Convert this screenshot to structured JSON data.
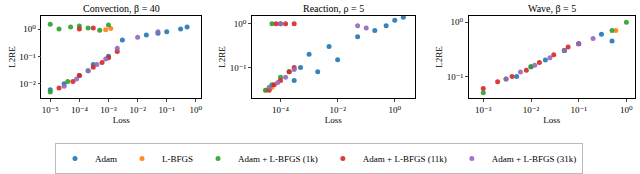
{
  "chart_data": [
    {
      "type": "scatter",
      "title": "Convection, β = 40",
      "x_label": "Loss",
      "y_label": "L2RE",
      "log": true,
      "legend": "bottom",
      "xlim": [
        5e-06,
        1.5
      ],
      "ylim": [
        0.003,
        3
      ],
      "xticks": [
        {
          "value": 1e-05,
          "label": "10⁻⁵"
        },
        {
          "value": 0.0001,
          "label": "10⁻⁴"
        },
        {
          "value": 0.001,
          "label": "10⁻³"
        },
        {
          "value": 0.01,
          "label": "10⁻²"
        },
        {
          "value": 0.1,
          "label": "10⁻¹"
        },
        {
          "value": 1,
          "label": "10⁰"
        }
      ],
      "yticks": [
        {
          "value": 0.01,
          "label": "10⁻²"
        },
        {
          "value": 0.1,
          "label": "10⁻¹"
        },
        {
          "value": 1,
          "label": "10⁰"
        }
      ],
      "series": [
        {
          "name": "Adam",
          "color": "#1f77b4",
          "x": [
            1e-05,
            3e-05,
            0.0001,
            0.0003,
            0.001,
            0.003,
            0.02,
            0.05,
            0.1,
            0.3,
            0.5
          ],
          "values": [
            0.006,
            0.01,
            0.02,
            0.05,
            0.1,
            0.4,
            0.6,
            0.7,
            0.8,
            1.0,
            1.2
          ]
        },
        {
          "name": "L-BFGS",
          "color": "#ff7f0e",
          "x": [
            0.0012,
            0.0008
          ],
          "values": [
            1.05,
            0.95
          ]
        },
        {
          "name": "Adam + L-BFGS (1k)",
          "color": "#2ca02c",
          "x": [
            1e-05,
            2e-05,
            5e-05,
            0.0001,
            0.0002,
            0.0005,
            0.001,
            1e-05,
            4e-05,
            0.0002
          ],
          "values": [
            1.5,
            1.0,
            1.2,
            1.3,
            1.1,
            0.9,
            1.4,
            0.005,
            0.012,
            0.03
          ]
        },
        {
          "name": "Adam + L-BFGS (11k)",
          "color": "#d62728",
          "x": [
            2e-05,
            6e-05,
            0.0001,
            0.0003,
            0.0006,
            0.001,
            0.002,
            0.0001,
            0.0003
          ],
          "values": [
            0.007,
            0.012,
            0.02,
            0.04,
            0.06,
            0.09,
            0.15,
            1.0,
            1.1
          ]
        },
        {
          "name": "Adam + L-BFGS (31k)",
          "color": "#9467bd",
          "x": [
            3e-05,
            8e-05,
            0.0002,
            0.0004,
            0.0008,
            0.002,
            0.01,
            0.05
          ],
          "values": [
            0.008,
            0.015,
            0.03,
            0.05,
            0.08,
            0.2,
            0.5,
            0.8
          ]
        }
      ]
    },
    {
      "type": "scatter",
      "title": "Reaction, ρ = 5",
      "x_label": "Loss",
      "y_label": "L2RE",
      "log": true,
      "legend": "bottom",
      "xlim": [
        1e-05,
        5
      ],
      "ylim": [
        0.02,
        1.5
      ],
      "xticks": [
        {
          "value": 0.0001,
          "label": "10⁻⁴"
        },
        {
          "value": 0.01,
          "label": "10⁻²"
        },
        {
          "value": 1,
          "label": "10⁰"
        }
      ],
      "yticks": [
        {
          "value": 0.1,
          "label": "10⁻¹"
        },
        {
          "value": 1,
          "label": "10⁰"
        }
      ],
      "series": [
        {
          "name": "Adam",
          "color": "#1f77b4",
          "x": [
            0.0003,
            0.0005,
            0.001,
            0.002,
            0.005,
            0.01,
            0.05,
            0.2,
            0.5,
            1.0,
            2.0
          ],
          "values": [
            0.05,
            0.1,
            0.2,
            0.08,
            0.3,
            0.15,
            0.5,
            0.7,
            0.9,
            1.2,
            1.4
          ]
        },
        {
          "name": "L-BFGS",
          "color": "#ff7f0e",
          "x": [
            3e-05,
            5e-05
          ],
          "values": [
            0.03,
            0.035
          ]
        },
        {
          "name": "Adam + L-BFGS (1k)",
          "color": "#2ca02c",
          "x": [
            3e-05,
            5e-05,
            0.0001,
            0.0002,
            5e-05,
            0.0001
          ],
          "values": [
            0.03,
            0.04,
            0.06,
            0.08,
            1.0,
            1.0
          ]
        },
        {
          "name": "Adam + L-BFGS (11k)",
          "color": "#d62728",
          "x": [
            4e-05,
            6e-05,
            0.0001,
            0.0002,
            0.0003,
            7e-05,
            0.00015,
            0.0003
          ],
          "values": [
            0.03,
            0.04,
            0.05,
            0.08,
            0.1,
            1.0,
            1.0,
            1.0
          ]
        },
        {
          "name": "Adam + L-BFGS (31k)",
          "color": "#9467bd",
          "x": [
            4e-05,
            8e-05,
            0.00015,
            0.0003,
            0.0001,
            0.05,
            0.1
          ],
          "values": [
            0.035,
            0.045,
            0.06,
            0.09,
            1.0,
            0.9,
            0.8
          ]
        }
      ]
    },
    {
      "type": "scatter",
      "title": "Wave, β = 5",
      "x_label": "Loss",
      "y_label": "L2RE",
      "log": true,
      "legend": "bottom",
      "xlim": [
        0.0005,
        1.5
      ],
      "ylim": [
        0.04,
        1.3
      ],
      "xticks": [
        {
          "value": 0.001,
          "label": "10⁻³"
        },
        {
          "value": 0.01,
          "label": "10⁻²"
        },
        {
          "value": 0.1,
          "label": "10⁻¹"
        },
        {
          "value": 1,
          "label": "10⁰"
        }
      ],
      "yticks": [
        {
          "value": 0.1,
          "label": "10⁻¹"
        },
        {
          "value": 1,
          "label": "10⁰"
        }
      ],
      "series": [
        {
          "name": "Adam",
          "color": "#1f77b4",
          "x": [
            0.005,
            0.01,
            0.02,
            0.05,
            0.1,
            0.3,
            0.5
          ],
          "values": [
            0.1,
            0.15,
            0.2,
            0.3,
            0.4,
            0.6,
            0.45
          ]
        },
        {
          "name": "L-BFGS",
          "color": "#ff7f0e",
          "x": [
            0.6
          ],
          "values": [
            0.7
          ]
        },
        {
          "name": "Adam + L-BFGS (1k)",
          "color": "#2ca02c",
          "x": [
            0.001,
            0.003,
            0.01,
            0.05,
            0.5,
            1.0
          ],
          "values": [
            0.05,
            0.09,
            0.15,
            0.3,
            0.7,
            1.0
          ]
        },
        {
          "name": "Adam + L-BFGS (11k)",
          "color": "#d62728",
          "x": [
            0.001,
            0.002,
            0.004,
            0.008,
            0.015,
            0.03,
            0.06,
            0.1
          ],
          "values": [
            0.06,
            0.08,
            0.1,
            0.13,
            0.18,
            0.25,
            0.35,
            0.4
          ]
        },
        {
          "name": "Adam + L-BFGS (31k)",
          "color": "#9467bd",
          "x": [
            0.003,
            0.006,
            0.012,
            0.025,
            0.05,
            0.1,
            0.2
          ],
          "values": [
            0.09,
            0.12,
            0.16,
            0.22,
            0.3,
            0.4,
            0.5
          ]
        }
      ]
    }
  ]
}
